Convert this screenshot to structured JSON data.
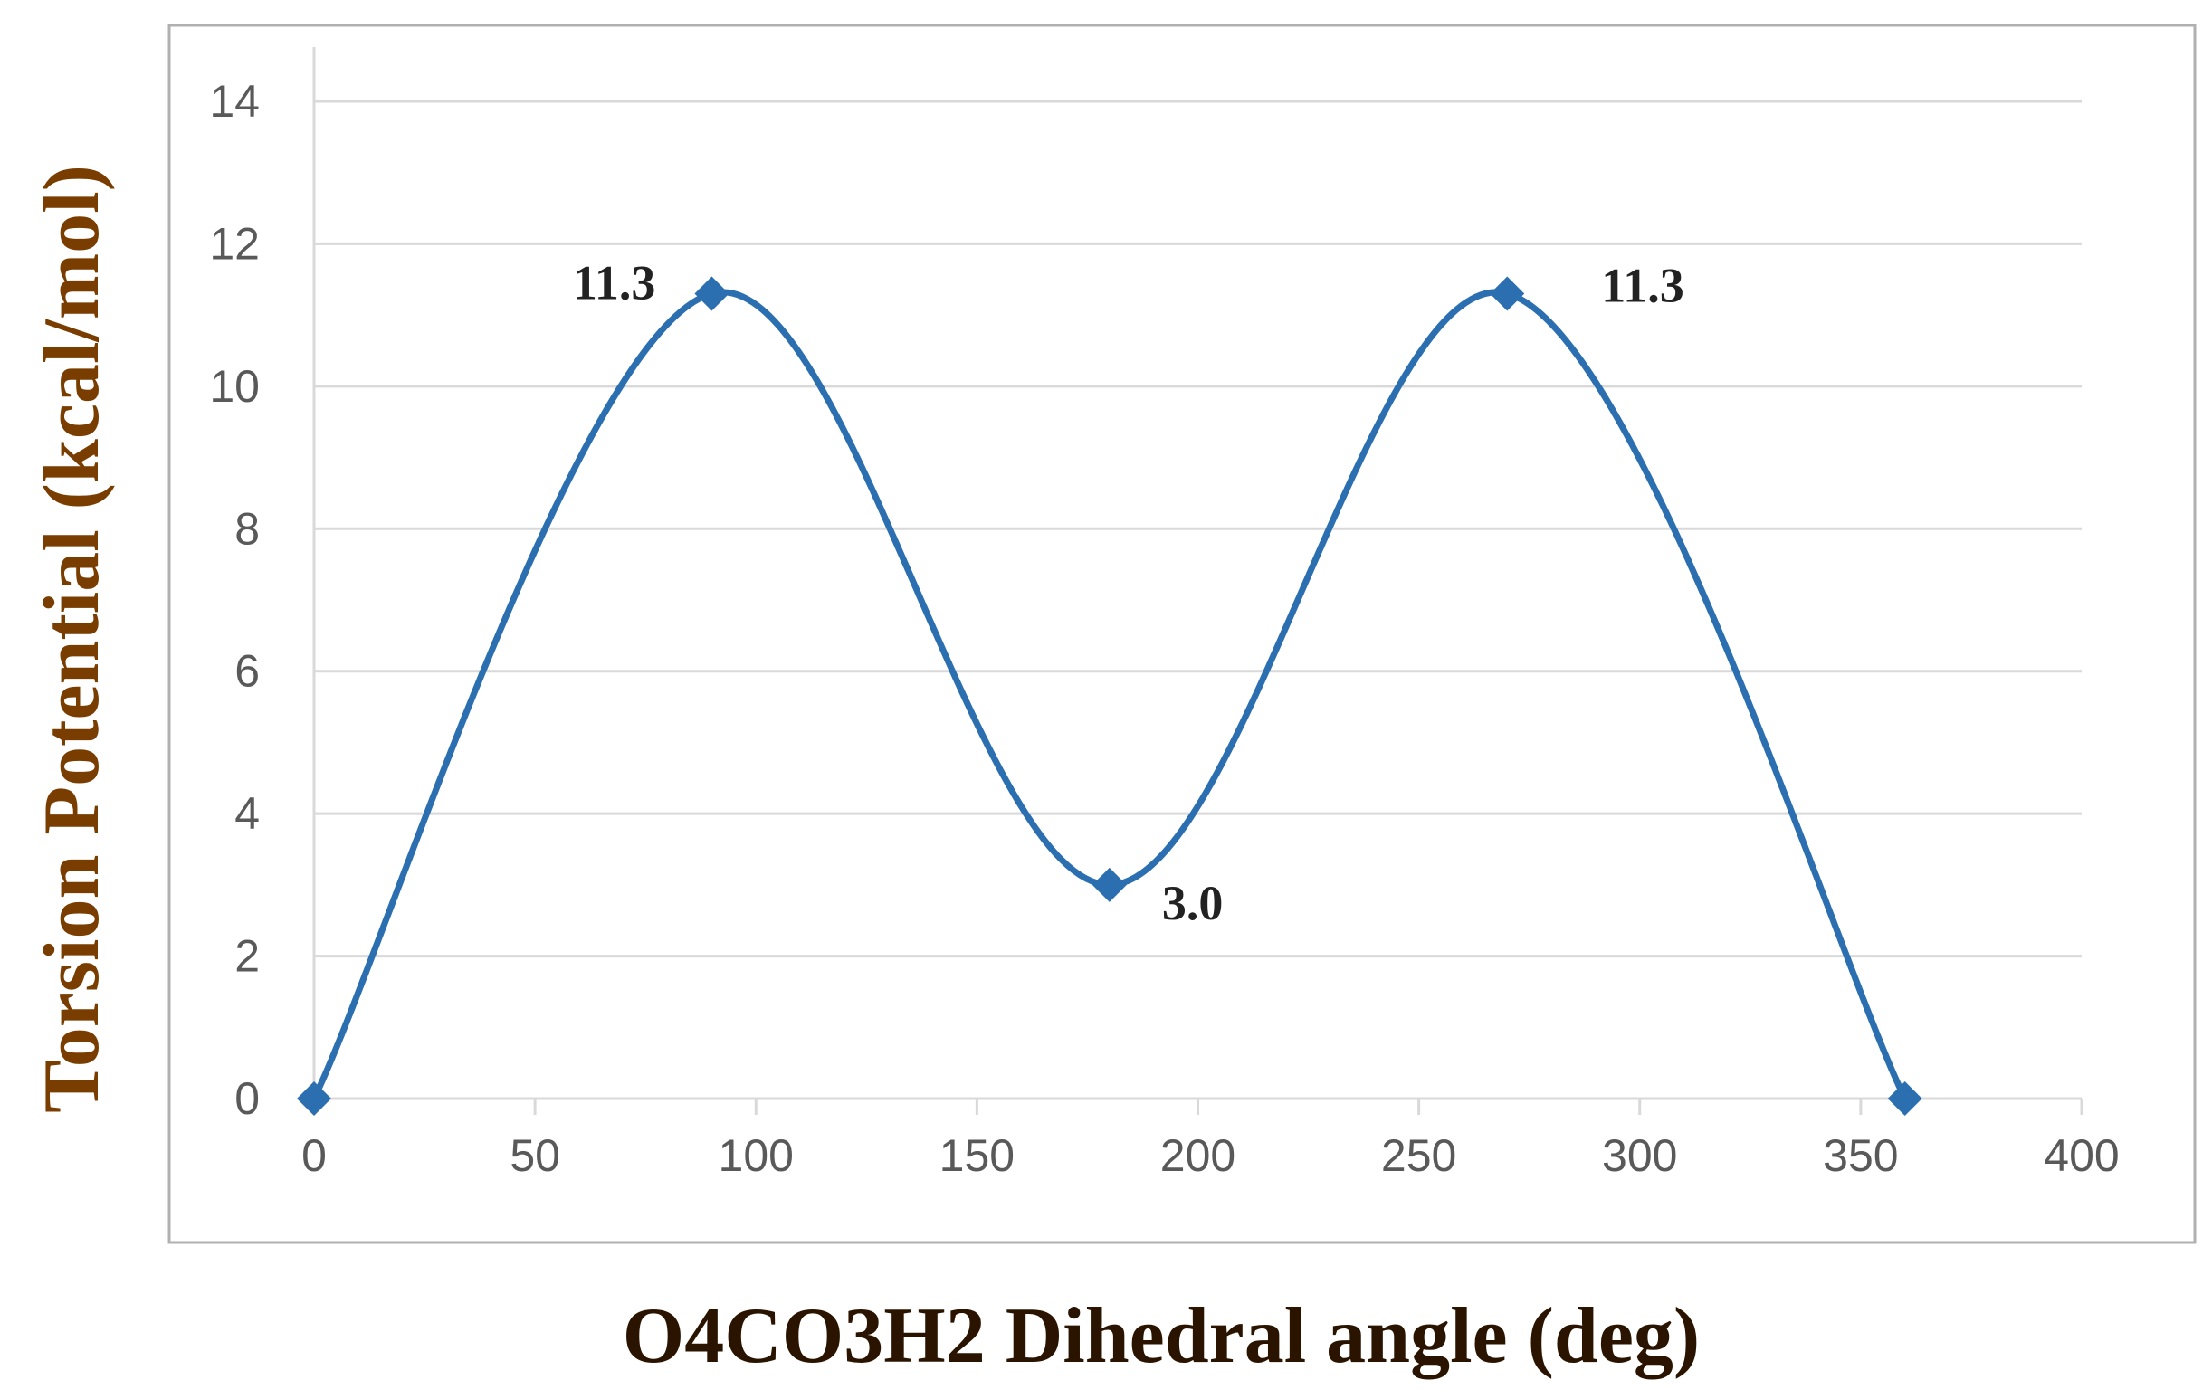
{
  "chart_data": {
    "type": "scatter",
    "title": "",
    "xlabel": "O4CO3H2 Dihedral angle (deg)",
    "ylabel": "Torsion Potential (kcal/mol)",
    "xlim": [
      0,
      400
    ],
    "ylim": [
      0,
      14
    ],
    "xticks": [
      0,
      50,
      100,
      150,
      200,
      250,
      300,
      350,
      400
    ],
    "yticks": [
      0,
      2,
      4,
      6,
      8,
      10,
      12,
      14
    ],
    "grid": "horizontal",
    "legend": "none",
    "smooth_line": true,
    "series": [
      {
        "x": [
          0,
          90,
          180,
          270,
          360
        ],
        "y": [
          0,
          11.3,
          3.0,
          11.3,
          0
        ]
      }
    ],
    "annotations": [
      {
        "x": 90,
        "y": 11.3,
        "text": "11.3",
        "side": "left"
      },
      {
        "x": 180,
        "y": 3.0,
        "text": "3.0",
        "side": "right"
      },
      {
        "x": 270,
        "y": 11.3,
        "text": "11.3",
        "side": "right"
      }
    ]
  },
  "colors": {
    "series": "#2b6fb0",
    "axis_label": "#7a3d00",
    "annotation": "#222222",
    "tick_label": "#595959",
    "grid": "#d9d9d9",
    "frame": "#b0b0b0"
  }
}
